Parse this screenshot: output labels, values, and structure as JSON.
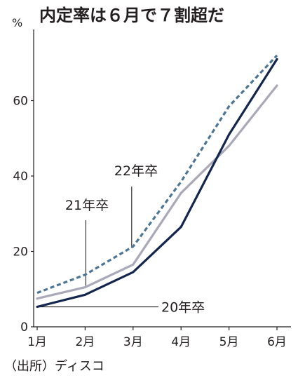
{
  "chart_data": {
    "type": "line",
    "title": "内定率は６月で７割超だ",
    "ylabel": "%",
    "xlabel": "",
    "categories": [
      "1月",
      "2月",
      "3月",
      "4月",
      "5月",
      "6月"
    ],
    "ylim": [
      0,
      75
    ],
    "yticks": [
      "0",
      "20",
      "40",
      "60"
    ],
    "grid": false,
    "legend": "none",
    "series": [
      {
        "name": "22年卒",
        "values": [
          9.0,
          13.8,
          21.3,
          38.5,
          58.5,
          72.0
        ],
        "color": "#4d7594",
        "style": "dashed"
      },
      {
        "name": "21年卒",
        "values": [
          7.5,
          10.5,
          16.5,
          35.5,
          48.0,
          64.0
        ],
        "color": "#a9a9ba",
        "style": "solid"
      },
      {
        "name": "20年卒",
        "values": [
          5.3,
          8.5,
          14.5,
          26.5,
          51.0,
          71.0
        ],
        "color": "#14264e",
        "style": "solid"
      }
    ],
    "source": "（出所）ディスコ"
  }
}
